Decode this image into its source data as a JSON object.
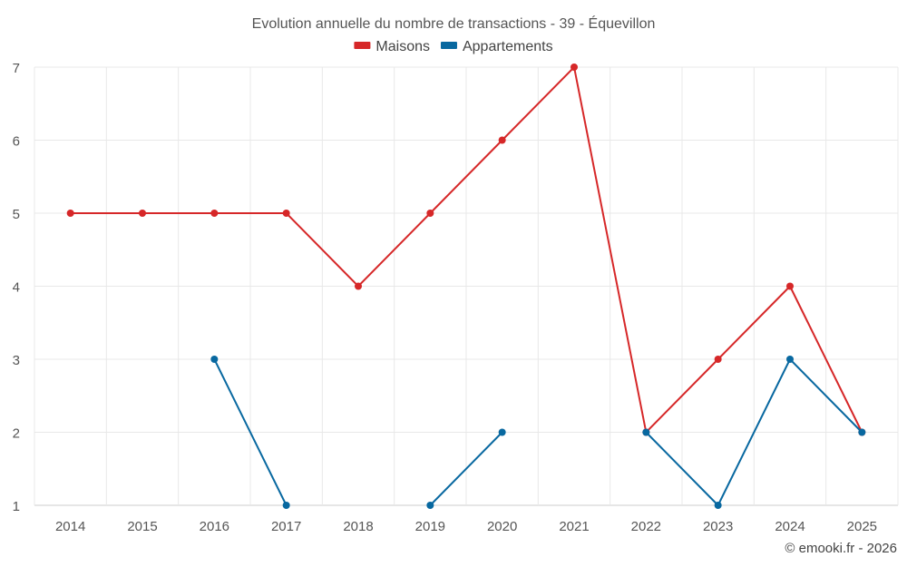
{
  "chart_data": {
    "type": "line",
    "title": "Evolution annuelle du nombre de transactions - 39 - Équevillon",
    "categories": [
      "2014",
      "2015",
      "2016",
      "2017",
      "2018",
      "2019",
      "2020",
      "2021",
      "2022",
      "2023",
      "2024",
      "2025"
    ],
    "series": [
      {
        "name": "Maisons",
        "color": "#d62728",
        "values": [
          5,
          5,
          5,
          5,
          4,
          5,
          6,
          7,
          2,
          3,
          4,
          2
        ]
      },
      {
        "name": "Appartements",
        "color": "#0868a0",
        "values": [
          null,
          null,
          3,
          1,
          null,
          1,
          2,
          null,
          2,
          1,
          3,
          2
        ]
      }
    ],
    "yticks": [
      1,
      2,
      3,
      4,
      5,
      6,
      7
    ],
    "ylim": [
      1,
      7
    ],
    "grid": true,
    "legend_position": "top-center",
    "credit": "© emooki.fr - 2026"
  }
}
